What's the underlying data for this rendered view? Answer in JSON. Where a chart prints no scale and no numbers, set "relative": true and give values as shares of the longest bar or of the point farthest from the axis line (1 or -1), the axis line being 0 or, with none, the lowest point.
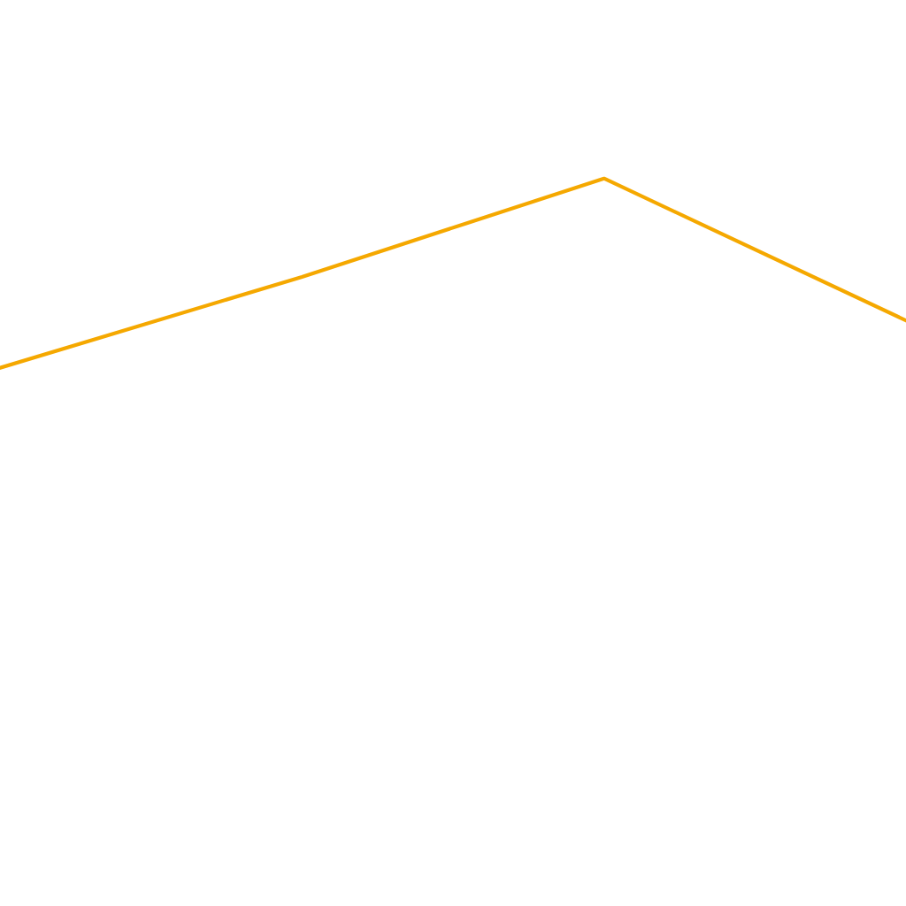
{
  "chart_data": {
    "type": "line",
    "relative": true,
    "categories": [
      null,
      null,
      null,
      null
    ],
    "series": [
      {
        "color": "#f5a800",
        "values": [
          0,
          0.48,
          1,
          0.25
        ]
      }
    ],
    "line_style": "solid",
    "marker": "none",
    "legend": false
  }
}
